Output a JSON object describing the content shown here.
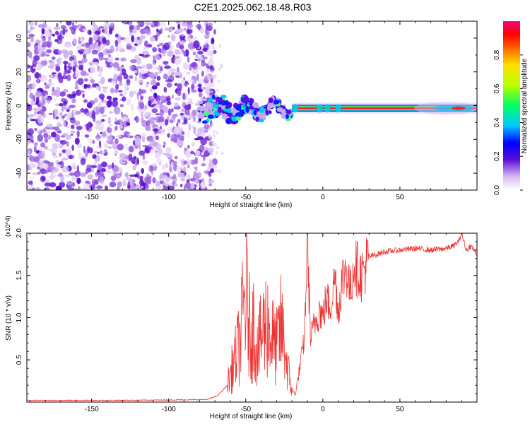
{
  "title": "C2E1.2025.062.18.48.R03",
  "chart_data": [
    {
      "type": "heatmap",
      "xlabel": "Height of straight line (km)",
      "ylabel": "Frequency (Hz)",
      "xlim": [
        -192,
        100
      ],
      "ylim": [
        -50,
        50
      ],
      "xticks": [
        -150,
        -100,
        -50,
        0,
        50
      ],
      "yticks": [
        -40,
        -20,
        0,
        20,
        40
      ],
      "colorbar": {
        "label": "Normalized spectral amplitude",
        "range": [
          0,
          1
        ],
        "ticks": [
          "0.0",
          "0.2",
          "0.4",
          "0.6",
          "0.8"
        ]
      },
      "features": [
        {
          "segment": "noise",
          "x_range": [
            -192,
            -70
          ],
          "freq_range": [
            -50,
            50
          ],
          "amplitude": 0.1
        },
        {
          "segment": "onset",
          "x_range": [
            -80,
            -20
          ],
          "freq_range": [
            -15,
            12
          ],
          "amplitude": 0.35
        },
        {
          "segment": "signal",
          "x_range": [
            -20,
            100
          ],
          "freq_center": -1.5,
          "amplitude": 0.97
        }
      ]
    },
    {
      "type": "line",
      "xlabel": "Height of straight line (km)",
      "ylabel": "SNR (10 * v/v)",
      "y_multiplier": "(x10^4)",
      "xlim": [
        -192,
        100
      ],
      "ylim": [
        0,
        2.0
      ],
      "xticks": [
        -150,
        -100,
        -50,
        0,
        50
      ],
      "yticks": [
        "0.5",
        "1.0",
        "1.5",
        "2.0"
      ],
      "color": "#ee3333",
      "series": [
        {
          "x": [
            -192,
            -140,
            -100,
            -75,
            -68,
            -62,
            -58,
            -54,
            -50,
            -47,
            -45,
            -42,
            -39,
            -36,
            -33,
            -30,
            -27,
            -24,
            -21,
            -18,
            -15,
            -12,
            -10,
            -8,
            -5,
            -2,
            0,
            2,
            5,
            8,
            10,
            12,
            15,
            18,
            20,
            25,
            30,
            40,
            50,
            60,
            70,
            80,
            85,
            88,
            90,
            93,
            96,
            100
          ],
          "y": [
            0.02,
            0.02,
            0.025,
            0.03,
            0.08,
            0.2,
            0.45,
            0.7,
            1.3,
            0.8,
            0.9,
            0.6,
            0.85,
            0.95,
            0.75,
            0.65,
            0.9,
            0.55,
            0.2,
            0.08,
            0.4,
            0.75,
            1.9,
            0.75,
            0.95,
            1.1,
            1.0,
            1.2,
            1.15,
            1.5,
            1.05,
            1.4,
            1.6,
            1.3,
            1.65,
            1.5,
            1.72,
            1.78,
            1.8,
            1.82,
            1.8,
            1.82,
            1.85,
            1.9,
            2.0,
            1.8,
            1.85,
            1.75
          ]
        }
      ]
    }
  ]
}
